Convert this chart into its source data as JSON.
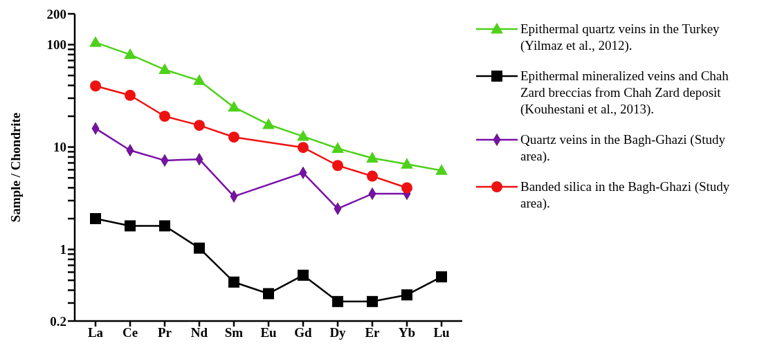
{
  "chart_data": {
    "type": "line",
    "ylabel": "Sample / Chondrite",
    "log": "y",
    "ylim": [
      0.2,
      200
    ],
    "yticks": [
      0.2,
      {
        "value": 0.3,
        "label": null
      },
      {
        "value": 0.4,
        "label": null
      },
      {
        "value": 0.5,
        "label": null
      },
      {
        "value": 0.6,
        "label": null
      },
      {
        "value": 0.7,
        "label": null
      },
      {
        "value": 0.8,
        "label": null
      },
      {
        "value": 0.9,
        "label": null
      },
      1,
      {
        "value": 2,
        "label": null
      },
      {
        "value": 3,
        "label": null
      },
      {
        "value": 4,
        "label": null
      },
      {
        "value": 5,
        "label": null
      },
      {
        "value": 6,
        "label": null
      },
      {
        "value": 7,
        "label": null
      },
      {
        "value": 8,
        "label": null
      },
      {
        "value": 9,
        "label": null
      },
      10,
      {
        "value": 20,
        "label": null
      },
      {
        "value": 30,
        "label": null
      },
      {
        "value": 40,
        "label": null
      },
      {
        "value": 50,
        "label": null
      },
      {
        "value": 60,
        "label": null
      },
      {
        "value": 70,
        "label": null
      },
      {
        "value": 80,
        "label": null
      },
      {
        "value": 90,
        "label": null
      },
      100,
      200
    ],
    "categories": [
      "La",
      "Ce",
      "Pr",
      "Nd",
      "Sm",
      "Eu",
      "Gd",
      "Dy",
      "Er",
      "Yb",
      "Lu"
    ],
    "legend": "right",
    "grid": false,
    "series": [
      {
        "name": "Epithermal quartz veins in the Turkey (Yilmaz et al., 2012).",
        "color": "#4ed11a",
        "marker": "triangle",
        "values": [
          105,
          80,
          57,
          44.6,
          24.5,
          16.6,
          12.7,
          9.7,
          7.8,
          6.8,
          5.9
        ]
      },
      {
        "name": "Epithermal mineralized veins and Chah Zard breccias from Chah Zard deposit (Kouhestani et al., 2013).",
        "color": "#000000",
        "marker": "square",
        "values": [
          2.0,
          1.7,
          1.7,
          1.03,
          0.48,
          0.37,
          0.56,
          0.31,
          0.31,
          0.36,
          0.54
        ]
      },
      {
        "name": "Quartz veins in the Bagh-Ghazi (Study area).",
        "color": "#7a0fa8",
        "marker": "diamond",
        "values": [
          15.2,
          9.3,
          7.4,
          7.6,
          3.3,
          null,
          5.6,
          2.5,
          3.5,
          3.5,
          null
        ]
      },
      {
        "name": "Banded silica in the Bagh-Ghazi (Study area).",
        "color": "#ee1111",
        "marker": "circle",
        "values": [
          39.5,
          32,
          20,
          16.3,
          12.5,
          null,
          9.9,
          6.6,
          5.2,
          4.0,
          null
        ]
      }
    ]
  }
}
